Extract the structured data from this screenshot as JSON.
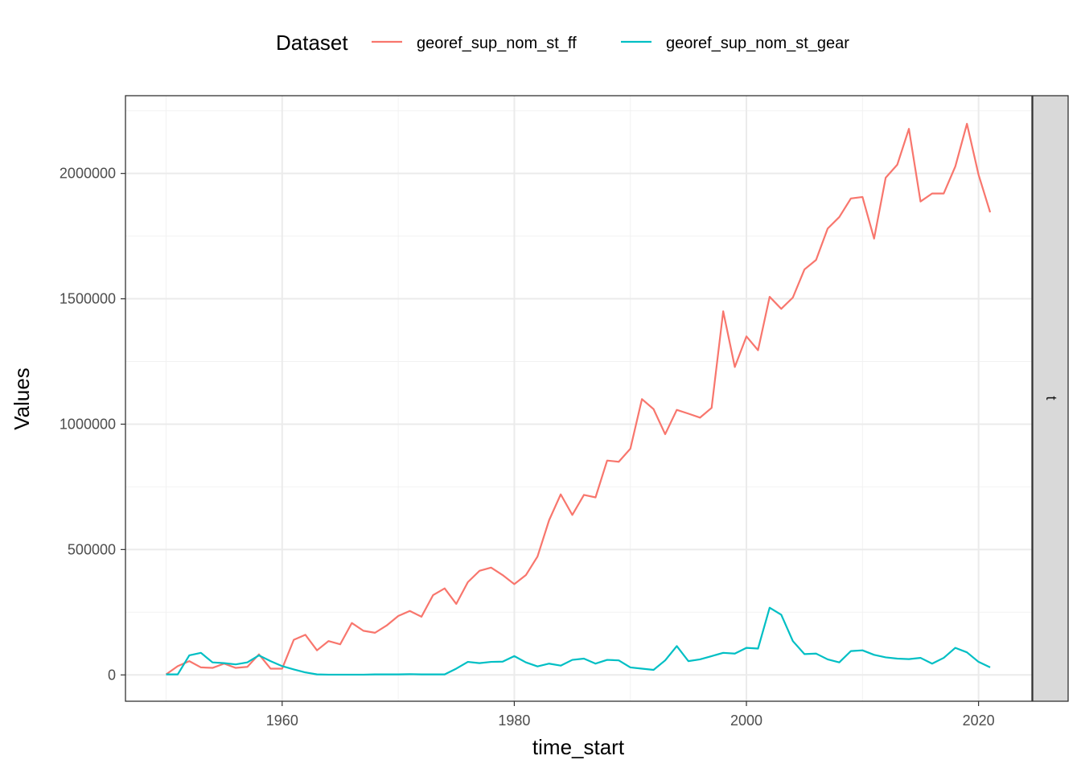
{
  "chart_data": {
    "type": "line",
    "xlabel": "time_start",
    "ylabel": "Values",
    "xlim": [
      1946.5,
      2024.6
    ],
    "ylim": [
      -105000,
      2310000
    ],
    "x_ticks": [
      1960,
      1980,
      2000,
      2020
    ],
    "y_ticks": [
      0,
      500000,
      1000000,
      1500000,
      2000000
    ],
    "x_tick_labels": [
      "1960",
      "1980",
      "2000",
      "2020"
    ],
    "y_tick_labels": [
      "0",
      "500000",
      "1000000",
      "1500000",
      "2000000"
    ],
    "grid": true,
    "legend": {
      "title": "Dataset",
      "placement": "top"
    },
    "facet_label": "t",
    "x": [
      1950,
      1951,
      1952,
      1953,
      1954,
      1955,
      1956,
      1957,
      1958,
      1959,
      1960,
      1961,
      1962,
      1963,
      1964,
      1965,
      1966,
      1967,
      1968,
      1969,
      1970,
      1971,
      1972,
      1973,
      1974,
      1975,
      1976,
      1977,
      1978,
      1979,
      1980,
      1981,
      1982,
      1983,
      1984,
      1985,
      1986,
      1987,
      1988,
      1989,
      1990,
      1991,
      1992,
      1993,
      1994,
      1995,
      1996,
      1997,
      1998,
      1999,
      2000,
      2001,
      2002,
      2003,
      2004,
      2005,
      2006,
      2007,
      2008,
      2009,
      2010,
      2011,
      2012,
      2013,
      2014,
      2015,
      2016,
      2017,
      2018,
      2019,
      2020,
      2021
    ],
    "series": [
      {
        "name": "georef_sup_nom_st_ff",
        "color": "#f8766d",
        "values": [
          2000,
          35000,
          55000,
          30000,
          28000,
          45000,
          28000,
          32000,
          82000,
          25000,
          25000,
          140000,
          160000,
          98000,
          135000,
          122000,
          207000,
          176000,
          168000,
          197000,
          235000,
          255000,
          232000,
          318000,
          345000,
          283000,
          370000,
          415000,
          428000,
          398000,
          362000,
          398000,
          472000,
          617000,
          720000,
          638000,
          718000,
          708000,
          855000,
          850000,
          902000,
          1100000,
          1060000,
          960000,
          1057000,
          1042000,
          1026000,
          1065000,
          1450000,
          1228000,
          1350000,
          1295000,
          1508000,
          1460000,
          1505000,
          1617000,
          1655000,
          1780000,
          1826000,
          1900000,
          1906000,
          1740000,
          1983000,
          2035000,
          2178000,
          1888000,
          1920000,
          1920000,
          2028000,
          2198000,
          1995000,
          1845000
        ]
      },
      {
        "name": "georef_sup_nom_st_gear",
        "color": "#00bfc4",
        "values": [
          2000,
          2000,
          78000,
          88000,
          50000,
          47000,
          42000,
          50000,
          78000,
          55000,
          35000,
          22000,
          10000,
          2000,
          1000,
          1000,
          1000,
          1000,
          2000,
          2000,
          2000,
          3000,
          2000,
          2000,
          2000,
          25000,
          52000,
          47000,
          52000,
          53000,
          75000,
          50000,
          34000,
          45000,
          37000,
          60000,
          65000,
          45000,
          60000,
          58000,
          30000,
          25000,
          20000,
          58000,
          115000,
          55000,
          62000,
          75000,
          88000,
          85000,
          108000,
          105000,
          268000,
          240000,
          135000,
          83000,
          85000,
          62000,
          50000,
          95000,
          98000,
          80000,
          70000,
          65000,
          63000,
          68000,
          45000,
          68000,
          108000,
          90000,
          52000,
          30000
        ]
      }
    ]
  }
}
